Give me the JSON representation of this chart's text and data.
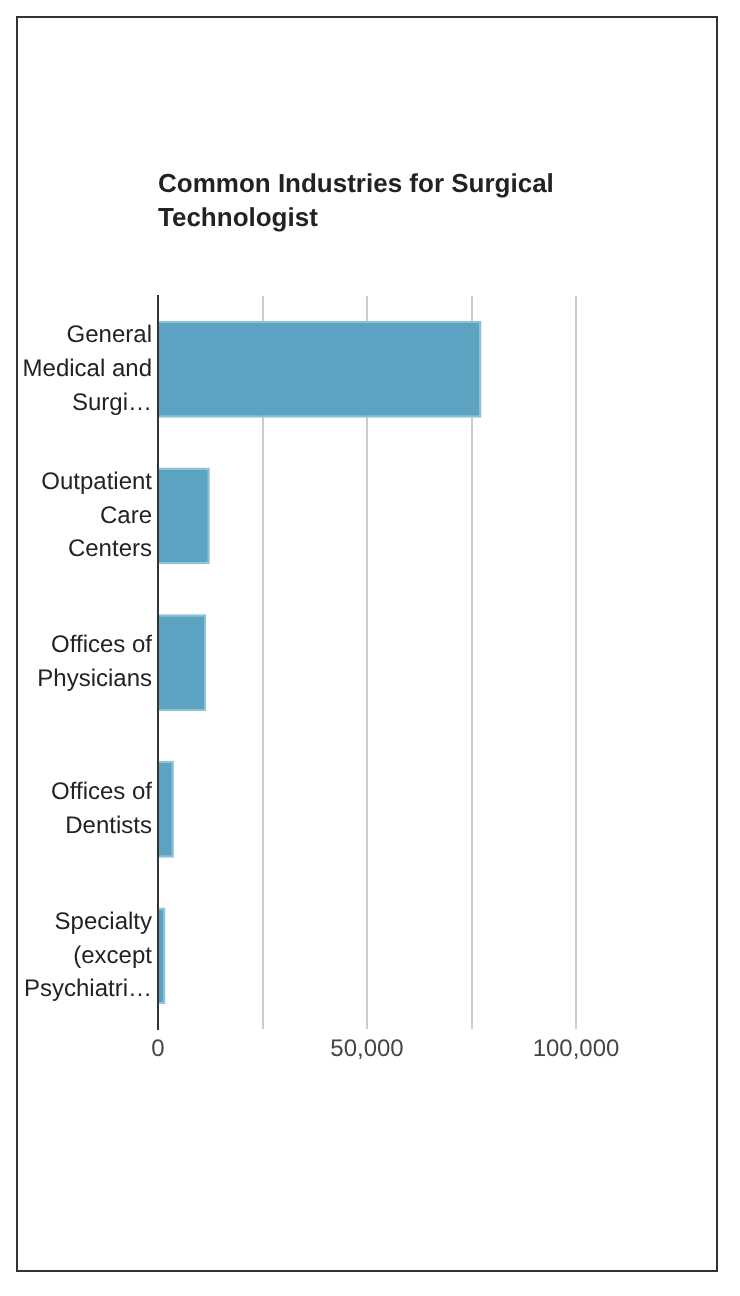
{
  "chart_data": {
    "type": "bar",
    "orientation": "horizontal",
    "title": "Common Industries for Surgical Technologist",
    "categories": [
      "General Medical and Surgi…",
      "Outpatient Care Centers",
      "Offices of Physicians",
      "Offices of Dentists",
      "Specialty (except Psychiatri…"
    ],
    "values": [
      77400,
      12400,
      11500,
      3800,
      1800
    ],
    "color": "#5ba3c1",
    "xlim": [
      0,
      100000
    ],
    "xticks": [
      0,
      {
        "value": 25000,
        "label": null
      },
      {
        "value": 50000,
        "label": "50,000"
      },
      {
        "value": 75000,
        "label": null
      },
      {
        "value": 100000,
        "label": "100,000"
      }
    ],
    "grid": "x",
    "legend": false
  }
}
